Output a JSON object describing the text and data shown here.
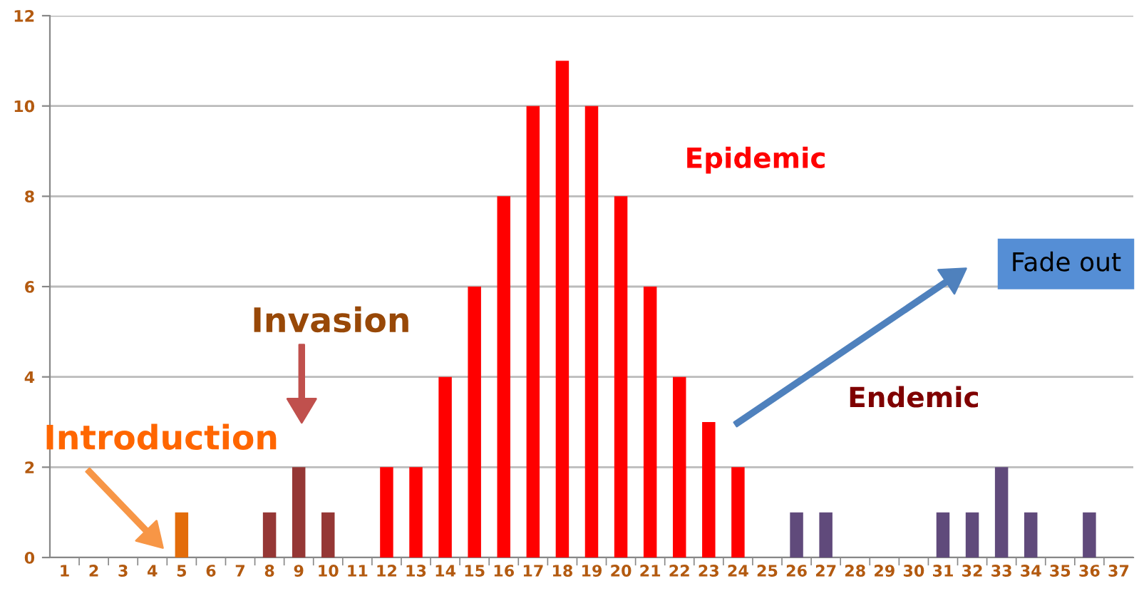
{
  "chart_data": {
    "type": "bar",
    "categories": [
      "1",
      "2",
      "3",
      "4",
      "5",
      "6",
      "7",
      "8",
      "9",
      "10",
      "11",
      "12",
      "13",
      "14",
      "15",
      "16",
      "17",
      "18",
      "19",
      "20",
      "21",
      "22",
      "23",
      "24",
      "25",
      "26",
      "27",
      "28",
      "29",
      "30",
      "31",
      "32",
      "33",
      "34",
      "35",
      "36",
      "37"
    ],
    "values": [
      0,
      0,
      0,
      0,
      1,
      0,
      0,
      1,
      2,
      1,
      0,
      2,
      2,
      4,
      6,
      8,
      10,
      11,
      10,
      8,
      6,
      4,
      3,
      2,
      0,
      1,
      1,
      0,
      0,
      0,
      1,
      1,
      2,
      1,
      0,
      1,
      0
    ],
    "colors": [
      "#e36c0a",
      "#e36c0a",
      "#e36c0a",
      "#e36c0a",
      "#e36c0a",
      "#953735",
      "#953735",
      "#953735",
      "#953735",
      "#953735",
      "#ff0000",
      "#ff0000",
      "#ff0000",
      "#ff0000",
      "#ff0000",
      "#ff0000",
      "#ff0000",
      "#ff0000",
      "#ff0000",
      "#ff0000",
      "#ff0000",
      "#ff0000",
      "#ff0000",
      "#ff0000",
      "#604a7b",
      "#604a7b",
      "#604a7b",
      "#604a7b",
      "#604a7b",
      "#604a7b",
      "#604a7b",
      "#604a7b",
      "#604a7b",
      "#604a7b",
      "#604a7b",
      "#604a7b",
      "#604a7b"
    ],
    "ylim": [
      0,
      12
    ],
    "yticks": [
      0,
      2,
      4,
      6,
      8,
      10,
      12
    ],
    "grid": "y",
    "legend": false,
    "annotations": [
      "Introduction",
      "Invasion",
      "Epidemic",
      "Endemic",
      "Fade out"
    ]
  }
}
